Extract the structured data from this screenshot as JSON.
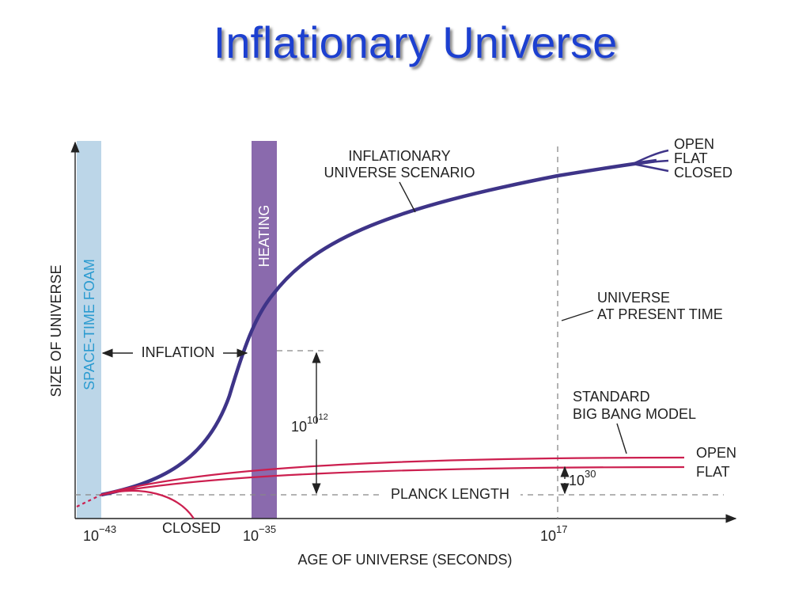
{
  "title": "Inflationary Universe",
  "axes": {
    "y_label": "SIZE OF UNIVERSE",
    "x_label": "AGE OF UNIVERSE (SECONDS)",
    "x_ticks": [
      {
        "base": "10",
        "exponent": "−43"
      },
      {
        "base": "10",
        "exponent": "−35"
      },
      {
        "base": "10",
        "exponent": "17"
      }
    ]
  },
  "bands": {
    "foam": "SPACE-TIME FOAM",
    "heating": "HEATING"
  },
  "inflationary_curve": {
    "label": [
      "INFLATIONARY",
      "UNIVERSE SCENARIO"
    ],
    "branches": [
      "OPEN",
      "FLAT",
      "CLOSED"
    ]
  },
  "standard_curve": {
    "label": [
      "STANDARD",
      "BIG BANG MODEL"
    ],
    "branches": [
      "OPEN",
      "FLAT"
    ],
    "closed": "CLOSED"
  },
  "inflation": "INFLATION",
  "present": [
    "UNIVERSE",
    "AT PRESENT TIME"
  ],
  "planck": "PLANCK LENGTH",
  "inflation_factor": {
    "base": "10",
    "exp1": "10",
    "exp2": "12"
  },
  "standard_factor": {
    "base": "10",
    "exponent": "30"
  }
}
